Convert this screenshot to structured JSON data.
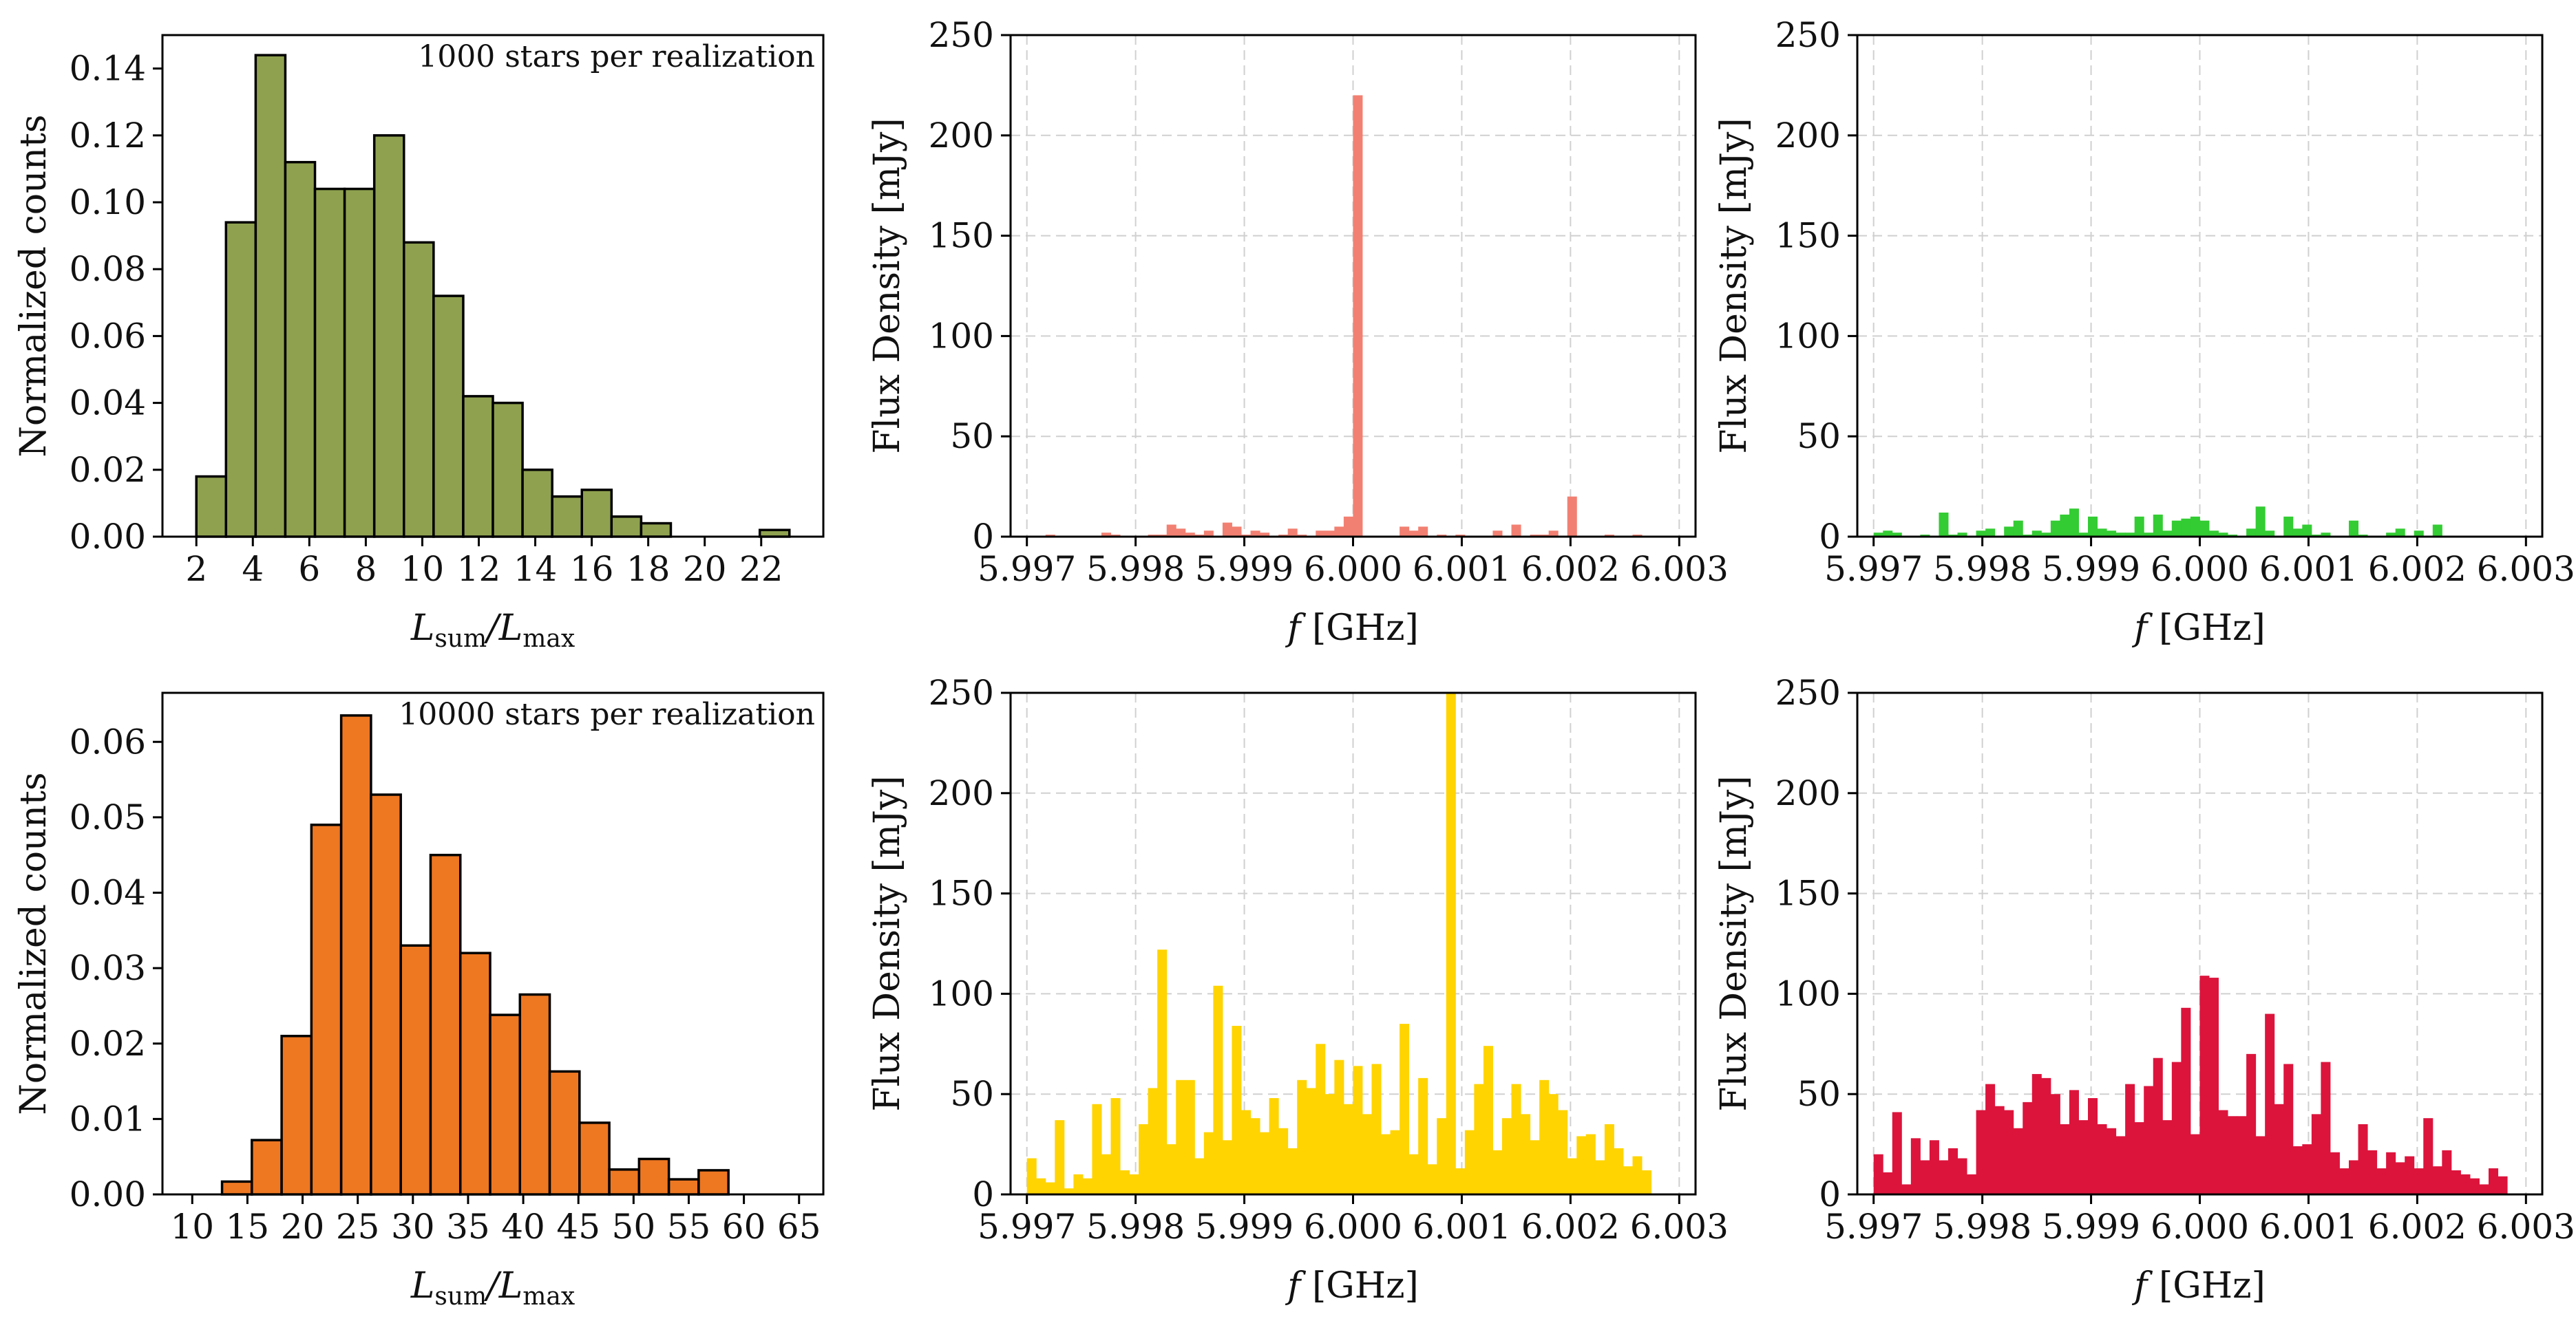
{
  "chart_data": [
    {
      "id": "hist1000",
      "type": "bar",
      "subtype": "histogram",
      "annotation": "1000 stars per realization",
      "xlabel_main": "L",
      "xlabel_sub1": "sum",
      "xlabel_mid": "/L",
      "xlabel_sub2": "max",
      "ylabel": "Normalized counts",
      "xlim": [
        0.8,
        24.2
      ],
      "ylim": [
        0,
        0.15
      ],
      "xticks": [
        2,
        4,
        6,
        8,
        10,
        12,
        14,
        16,
        18,
        20,
        22
      ],
      "xtick_labels": [
        "2",
        "4",
        "6",
        "8",
        "10",
        "12",
        "14",
        "16",
        "18",
        "20",
        "22"
      ],
      "yticks": [
        0,
        0.02,
        0.04,
        0.06,
        0.08,
        0.1,
        0.12,
        0.14
      ],
      "ytick_labels": [
        "0.00",
        "0.02",
        "0.04",
        "0.06",
        "0.08",
        "0.10",
        "0.12",
        "0.14"
      ],
      "bin_start": 2,
      "bin_width": 1.05,
      "values": [
        0.018,
        0.094,
        0.144,
        0.112,
        0.104,
        0.104,
        0.12,
        0.088,
        0.072,
        0.042,
        0.04,
        0.02,
        0.012,
        0.014,
        0.006,
        0.004,
        0,
        0,
        0,
        0.002,
        0
      ],
      "color": "#8fa14f",
      "edgecolor": "#000000",
      "grid": false
    },
    {
      "id": "hist10000",
      "type": "bar",
      "subtype": "histogram",
      "annotation": "10000 stars per realization",
      "xlabel_main": "L",
      "xlabel_sub1": "sum",
      "xlabel_mid": "/L",
      "xlabel_sub2": "max",
      "ylabel": "Normalized counts",
      "xlim": [
        7.3,
        67.2
      ],
      "ylim": [
        0,
        0.0665
      ],
      "xticks": [
        10,
        15,
        20,
        25,
        30,
        35,
        40,
        45,
        50,
        55,
        60,
        65
      ],
      "xtick_labels": [
        "10",
        "15",
        "20",
        "25",
        "30",
        "35",
        "40",
        "45",
        "50",
        "55",
        "60",
        "65"
      ],
      "yticks": [
        0,
        0.01,
        0.02,
        0.03,
        0.04,
        0.05,
        0.06
      ],
      "ytick_labels": [
        "0.00",
        "0.01",
        "0.02",
        "0.03",
        "0.04",
        "0.05",
        "0.06"
      ],
      "bin_start": 10.0,
      "bin_width": 2.7,
      "values": [
        0,
        0.0017,
        0.0072,
        0.021,
        0.049,
        0.0635,
        0.053,
        0.033,
        0.045,
        0.032,
        0.0238,
        0.0265,
        0.0163,
        0.0095,
        0.0033,
        0.0047,
        0.002,
        0.0032,
        0,
        0,
        0
      ],
      "color": "#ee7722",
      "edgecolor": "#000000",
      "grid": false
    },
    {
      "id": "spec-salmon",
      "type": "bar",
      "subtype": "spectrum",
      "xlabel_main": "f",
      "xlabel_rest": " [GHz]",
      "ylabel": "Flux Density [mJy]",
      "xlim": [
        5.99685,
        6.00315
      ],
      "ylim": [
        0,
        250
      ],
      "xticks": [
        5.997,
        5.998,
        5.999,
        6.0,
        6.001,
        6.002,
        6.003
      ],
      "xtick_labels": [
        "5.997",
        "5.998",
        "5.999",
        "6.000",
        "6.001",
        "6.002",
        "6.003"
      ],
      "yticks": [
        0,
        50,
        100,
        150,
        200,
        250
      ],
      "ytick_labels": [
        "0",
        "50",
        "100",
        "150",
        "200",
        "250"
      ],
      "x_start": 5.997,
      "bin_width": 8.57e-05,
      "values": [
        0,
        0,
        1,
        0,
        0,
        0,
        0,
        0,
        2,
        1,
        0,
        0,
        0,
        1,
        1,
        6,
        4,
        2,
        1,
        3,
        0,
        7,
        5,
        1,
        3,
        2,
        0,
        1,
        4,
        1,
        0,
        3,
        3,
        5,
        10,
        220,
        0,
        0,
        0,
        0,
        5,
        3,
        5,
        0,
        1,
        0,
        1,
        0,
        0,
        0,
        3,
        0,
        6,
        0,
        1,
        1,
        3,
        0,
        20,
        0,
        0,
        0,
        1,
        0,
        0,
        1,
        0,
        0,
        0,
        0
      ],
      "color": "#f28072",
      "grid": true
    },
    {
      "id": "spec-green",
      "type": "bar",
      "subtype": "spectrum",
      "xlabel_main": "f",
      "xlabel_rest": " [GHz]",
      "ylabel": "Flux Density [mJy]",
      "xlim": [
        5.99685,
        6.00315
      ],
      "ylim": [
        0,
        250
      ],
      "xticks": [
        5.997,
        5.998,
        5.999,
        6.0,
        6.001,
        6.002,
        6.003
      ],
      "xtick_labels": [
        "5.997",
        "5.998",
        "5.999",
        "6.000",
        "6.001",
        "6.002",
        "6.003"
      ],
      "yticks": [
        0,
        50,
        100,
        150,
        200,
        250
      ],
      "ytick_labels": [
        "0",
        "50",
        "100",
        "150",
        "200",
        "250"
      ],
      "x_start": 5.997,
      "bin_width": 8.57e-05,
      "values": [
        2,
        3,
        2,
        0,
        0,
        1,
        0,
        12,
        1,
        2,
        0,
        3,
        4,
        0,
        5,
        8,
        1,
        3,
        2,
        8,
        11,
        14,
        2,
        10,
        4,
        3,
        2,
        2,
        10,
        2,
        11,
        3,
        8,
        9,
        10,
        8,
        3,
        2,
        1,
        0,
        4,
        15,
        3,
        0,
        10,
        4,
        6,
        1,
        2,
        0,
        0,
        8,
        1,
        0,
        0,
        2,
        4,
        0,
        3,
        0,
        6,
        0,
        0,
        0,
        0,
        0,
        0,
        0,
        0,
        0
      ],
      "color": "#33cc33",
      "grid": true
    },
    {
      "id": "spec-gold",
      "type": "bar",
      "subtype": "spectrum",
      "xlabel_main": "f",
      "xlabel_rest": " [GHz]",
      "ylabel": "Flux Density [mJy]",
      "xlim": [
        5.99685,
        6.00315
      ],
      "ylim": [
        0,
        250
      ],
      "xticks": [
        5.997,
        5.998,
        5.999,
        6.0,
        6.001,
        6.002,
        6.003
      ],
      "xtick_labels": [
        "5.997",
        "5.998",
        "5.999",
        "6.000",
        "6.001",
        "6.002",
        "6.003"
      ],
      "yticks": [
        0,
        50,
        100,
        150,
        200,
        250
      ],
      "ytick_labels": [
        "0",
        "50",
        "100",
        "150",
        "200",
        "250"
      ],
      "x_start": 5.997,
      "bin_width": 8.57e-05,
      "values": [
        18,
        8,
        6,
        37,
        3,
        10,
        8,
        45,
        20,
        48,
        12,
        10,
        35,
        53,
        122,
        25,
        57,
        57,
        18,
        31,
        104,
        27,
        84,
        42,
        38,
        31,
        48,
        33,
        23,
        57,
        53,
        75,
        50,
        67,
        45,
        64,
        40,
        65,
        30,
        32,
        85,
        20,
        58,
        15,
        38,
        250,
        13,
        32,
        55,
        74,
        22,
        38,
        55,
        40,
        27,
        57,
        50,
        42,
        18,
        29,
        30,
        17,
        35,
        23,
        14,
        19,
        12,
        0,
        0,
        0
      ],
      "color": "#ffd400",
      "grid": true
    },
    {
      "id": "spec-crimson",
      "type": "bar",
      "subtype": "spectrum",
      "xlabel_main": "f",
      "xlabel_rest": " [GHz]",
      "ylabel": "Flux Density [mJy]",
      "xlim": [
        5.99685,
        6.00315
      ],
      "ylim": [
        0,
        250
      ],
      "xticks": [
        5.997,
        5.998,
        5.999,
        6.0,
        6.001,
        6.002,
        6.003
      ],
      "xtick_labels": [
        "5.997",
        "5.998",
        "5.999",
        "6.000",
        "6.001",
        "6.002",
        "6.003"
      ],
      "yticks": [
        0,
        50,
        100,
        150,
        200,
        250
      ],
      "ytick_labels": [
        "0",
        "50",
        "100",
        "150",
        "200",
        "250"
      ],
      "x_start": 5.997,
      "bin_width": 8.57e-05,
      "values": [
        20,
        11,
        41,
        5,
        28,
        17,
        27,
        17,
        23,
        18,
        10,
        42,
        55,
        44,
        42,
        33,
        46,
        60,
        58,
        50,
        35,
        52,
        37,
        48,
        35,
        33,
        29,
        55,
        36,
        54,
        68,
        37,
        66,
        93,
        30,
        109,
        108,
        42,
        39,
        39,
        70,
        29,
        90,
        45,
        65,
        24,
        25,
        40,
        66,
        21,
        13,
        17,
        35,
        22,
        13,
        21,
        16,
        19,
        13,
        38,
        14,
        22,
        12,
        10,
        8,
        5,
        13,
        9,
        0,
        0
      ],
      "color": "#dc143c",
      "grid": true
    }
  ]
}
